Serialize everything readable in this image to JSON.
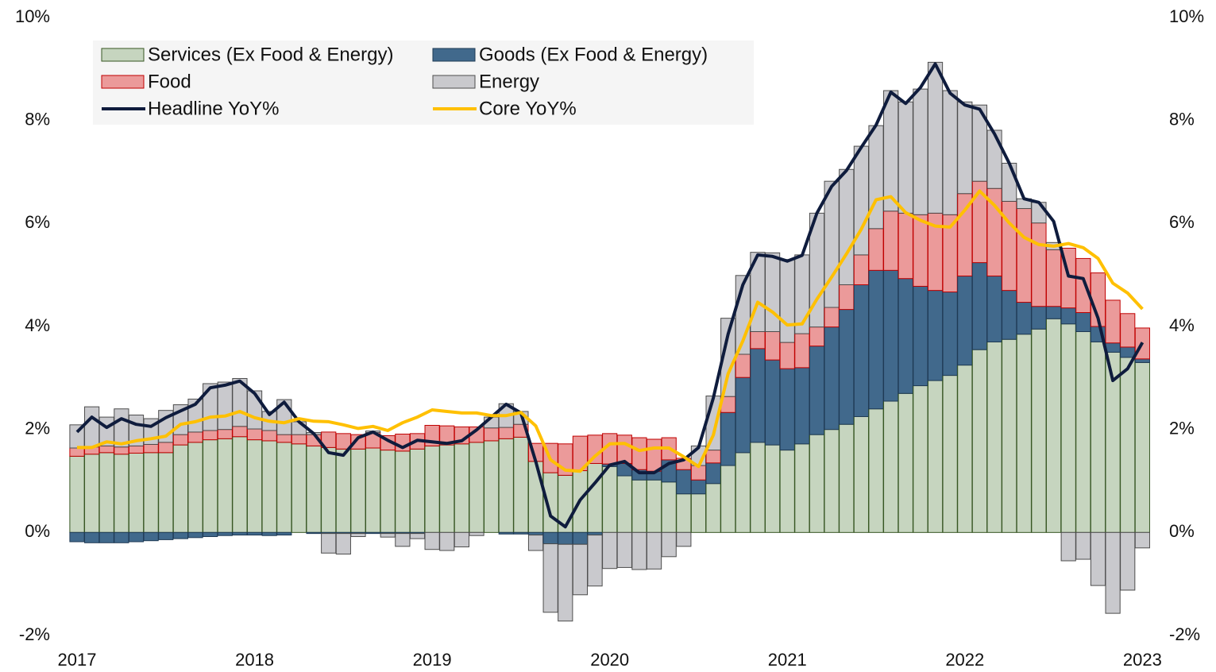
{
  "chart_data": {
    "type": "bar",
    "stacked": true,
    "categories": [
      "2017",
      null,
      null,
      null,
      null,
      null,
      null,
      null,
      null,
      null,
      null,
      null,
      "2018",
      null,
      null,
      null,
      null,
      null,
      null,
      null,
      null,
      null,
      null,
      null,
      "2019",
      null,
      null,
      null,
      null,
      null,
      null,
      null,
      null,
      null,
      null,
      null,
      "2020",
      null,
      null,
      null,
      null,
      null,
      null,
      null,
      null,
      null,
      null,
      null,
      "2021",
      null,
      null,
      null,
      null,
      null,
      null,
      null,
      null,
      null,
      null,
      null,
      "2022",
      null,
      null,
      null,
      null,
      null,
      null,
      null,
      null,
      null,
      null,
      null,
      "2023"
    ],
    "series": [
      {
        "name": "Services (Ex Food & Energy)",
        "type": "bar",
        "color": "#c6d5bf",
        "edge": "#375623",
        "values": [
          1.48,
          1.52,
          1.55,
          1.52,
          1.54,
          1.55,
          1.55,
          1.7,
          1.75,
          1.8,
          1.82,
          1.86,
          1.8,
          1.78,
          1.75,
          1.72,
          1.68,
          1.65,
          1.62,
          1.62,
          1.64,
          1.6,
          1.58,
          1.62,
          1.68,
          1.7,
          1.72,
          1.75,
          1.78,
          1.82,
          1.85,
          1.38,
          1.16,
          1.11,
          1.2,
          1.34,
          1.28,
          1.1,
          1.02,
          1.02,
          0.98,
          0.75,
          0.75,
          0.95,
          1.3,
          1.55,
          1.75,
          1.7,
          1.6,
          1.72,
          1.9,
          2.0,
          2.1,
          2.25,
          2.4,
          2.55,
          2.7,
          2.85,
          2.95,
          3.05,
          3.25,
          3.55,
          3.7,
          3.75,
          3.85,
          3.95,
          4.15,
          4.05,
          3.9,
          3.7,
          3.5,
          3.4,
          3.3
        ]
      },
      {
        "name": "Goods (Ex Food & Energy)",
        "type": "bar",
        "color": "#41698c",
        "edge": "#1f3a55",
        "values": [
          -0.18,
          -0.2,
          -0.2,
          -0.2,
          -0.18,
          -0.16,
          -0.14,
          -0.12,
          -0.1,
          -0.08,
          -0.06,
          -0.05,
          -0.05,
          -0.06,
          -0.05,
          0.0,
          -0.02,
          -0.02,
          -0.02,
          -0.02,
          -0.02,
          -0.02,
          -0.02,
          -0.02,
          0.0,
          0.0,
          0.0,
          0.0,
          0.0,
          -0.03,
          -0.03,
          -0.05,
          -0.22,
          -0.23,
          -0.23,
          -0.05,
          0.05,
          0.24,
          0.2,
          0.17,
          0.43,
          0.47,
          0.27,
          0.4,
          1.03,
          1.46,
          1.82,
          1.65,
          1.58,
          1.48,
          1.72,
          1.99,
          2.23,
          2.56,
          2.69,
          2.54,
          2.23,
          1.93,
          1.75,
          1.62,
          1.73,
          1.69,
          1.28,
          0.95,
          0.62,
          0.44,
          0.24,
          0.31,
          0.37,
          0.3,
          0.18,
          0.2,
          0.07
        ]
      },
      {
        "name": "Food",
        "type": "bar",
        "color": "#eb9a9a",
        "edge": "#c00000",
        "values": [
          0.16,
          0.14,
          0.13,
          0.14,
          0.14,
          0.16,
          0.2,
          0.2,
          0.2,
          0.18,
          0.18,
          0.2,
          0.21,
          0.2,
          0.15,
          0.18,
          0.22,
          0.3,
          0.3,
          0.28,
          0.3,
          0.28,
          0.33,
          0.3,
          0.4,
          0.37,
          0.33,
          0.3,
          0.25,
          0.22,
          0.25,
          0.35,
          0.57,
          0.61,
          0.67,
          0.55,
          0.59,
          0.55,
          0.62,
          0.62,
          0.43,
          0.22,
          0.28,
          0.25,
          0.31,
          0.45,
          0.33,
          0.55,
          0.51,
          0.66,
          0.37,
          0.38,
          0.48,
          0.58,
          0.81,
          1.15,
          1.27,
          1.39,
          1.5,
          1.5,
          1.6,
          1.58,
          1.7,
          1.73,
          1.82,
          1.62,
          1.1,
          1.16,
          1.05,
          1.04,
          0.83,
          0.65,
          0.6
        ]
      },
      {
        "name": "Energy",
        "type": "bar",
        "color": "#c9c9cd",
        "edge": "#4d4d4d",
        "values": [
          0.45,
          0.78,
          0.56,
          0.74,
          0.6,
          0.5,
          0.62,
          0.58,
          0.64,
          0.91,
          0.92,
          0.93,
          0.74,
          0.37,
          0.68,
          0.25,
          0.04,
          -0.38,
          -0.4,
          -0.06,
          0.03,
          -0.07,
          -0.25,
          -0.1,
          -0.33,
          -0.35,
          -0.28,
          -0.06,
          0.21,
          0.46,
          0.25,
          -0.3,
          -1.33,
          -1.49,
          -0.98,
          -0.99,
          -0.7,
          -0.68,
          -0.72,
          -0.71,
          -0.47,
          -0.27,
          0.38,
          1.05,
          1.52,
          1.53,
          1.54,
          1.53,
          1.61,
          1.53,
          2.21,
          2.45,
          2.24,
          2.11,
          2.0,
          2.34,
          2.16,
          2.44,
          2.93,
          2.41,
          1.78,
          1.48,
          1.13,
          0.74,
          0.19,
          0.4,
          0.14,
          -0.55,
          -0.52,
          -1.03,
          -1.57,
          -1.12,
          -0.3
        ]
      },
      {
        "name": "Headline YoY%",
        "type": "line",
        "color": "#0f1c3d",
        "values": [
          1.95,
          2.24,
          2.04,
          2.21,
          2.1,
          2.06,
          2.23,
          2.36,
          2.49,
          2.81,
          2.86,
          2.94,
          2.7,
          2.29,
          2.53,
          2.15,
          1.92,
          1.55,
          1.5,
          1.84,
          1.95,
          1.79,
          1.65,
          1.79,
          1.76,
          1.73,
          1.78,
          1.99,
          2.24,
          2.49,
          2.32,
          1.38,
          0.32,
          0.11,
          0.63,
          0.96,
          1.31,
          1.38,
          1.16,
          1.16,
          1.34,
          1.41,
          1.65,
          2.61,
          3.85,
          4.81,
          5.39,
          5.36,
          5.27,
          5.38,
          6.2,
          6.72,
          7.03,
          7.48,
          7.91,
          8.55,
          8.33,
          8.64,
          9.1,
          8.53,
          8.3,
          8.22,
          7.74,
          7.17,
          6.48,
          6.41,
          6.04,
          4.98,
          4.93,
          4.16,
          2.95,
          3.18,
          3.69
        ]
      },
      {
        "name": "Core YoY%",
        "type": "line",
        "color": "#ffc000",
        "values": [
          1.65,
          1.65,
          1.76,
          1.72,
          1.78,
          1.82,
          1.87,
          2.1,
          2.15,
          2.24,
          2.26,
          2.35,
          2.23,
          2.16,
          2.13,
          2.21,
          2.16,
          2.15,
          2.09,
          2.02,
          2.06,
          1.98,
          2.13,
          2.24,
          2.38,
          2.35,
          2.32,
          2.32,
          2.27,
          2.27,
          2.33,
          2.07,
          1.41,
          1.21,
          1.19,
          1.48,
          1.72,
          1.73,
          1.59,
          1.64,
          1.64,
          1.47,
          1.28,
          1.89,
          3.08,
          3.72,
          4.47,
          4.28,
          4.03,
          4.05,
          4.53,
          4.96,
          5.41,
          5.89,
          6.46,
          6.52,
          6.21,
          6.06,
          5.95,
          5.93,
          6.26,
          6.63,
          6.35,
          6.01,
          5.73,
          5.59,
          5.56,
          5.61,
          5.53,
          5.32,
          4.84,
          4.65,
          4.34
        ]
      }
    ],
    "ylim": [
      -2,
      10
    ],
    "yticks": [
      {
        "value": -2,
        "label": "-2%"
      },
      {
        "value": 0,
        "label": "0%"
      },
      {
        "value": 2,
        "label": "2%"
      },
      {
        "value": 4,
        "label": "4%"
      },
      {
        "value": 6,
        "label": "6%"
      },
      {
        "value": 8,
        "label": "8%"
      },
      {
        "value": 10,
        "label": "10%"
      }
    ],
    "y2lim": [
      -2,
      10
    ],
    "y2ticks": [
      {
        "value": -2,
        "label": "-2%"
      },
      {
        "value": 0,
        "label": "0%"
      },
      {
        "value": 2,
        "label": "2%"
      },
      {
        "value": 4,
        "label": "4%"
      },
      {
        "value": 6,
        "label": "6%"
      },
      {
        "value": 8,
        "label": "8%"
      },
      {
        "value": 10,
        "label": "10%"
      }
    ],
    "grid": false,
    "legend": "top-left"
  }
}
